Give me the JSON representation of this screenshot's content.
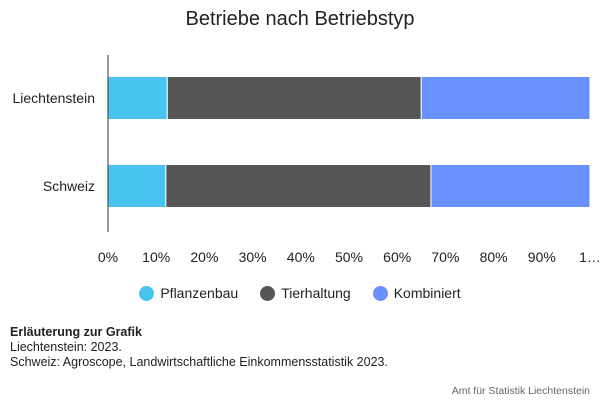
{
  "chart_data": {
    "type": "bar",
    "orientation": "horizontal",
    "stacked": true,
    "title": "Betriebe nach Betriebstyp",
    "categories": [
      "Liechtenstein",
      "Schweiz"
    ],
    "series": [
      {
        "name": "Pflanzenbau",
        "color": "#47c4ef",
        "values": [
          12.3,
          12.0
        ]
      },
      {
        "name": "Tierhaltung",
        "color": "#565656",
        "values": [
          52.7,
          55.0
        ]
      },
      {
        "name": "Kombiniert",
        "color": "#6990ff",
        "values": [
          35.0,
          33.0
        ]
      }
    ],
    "xlim": [
      0,
      100
    ],
    "x_ticks": [
      "0%",
      "10%",
      "20%",
      "30%",
      "40%",
      "50%",
      "60%",
      "70%",
      "80%",
      "90%",
      "1…"
    ],
    "legend_position": "bottom",
    "grid": false
  },
  "notes": {
    "title": "Erläuterung zur Grafik",
    "lines": [
      "Liechtenstein: 2023.",
      "Schweiz: Agroscope, Landwirtschaftliche Einkommensstatistik 2023."
    ]
  },
  "credit": "Amt für Statistik Liechtenstein"
}
